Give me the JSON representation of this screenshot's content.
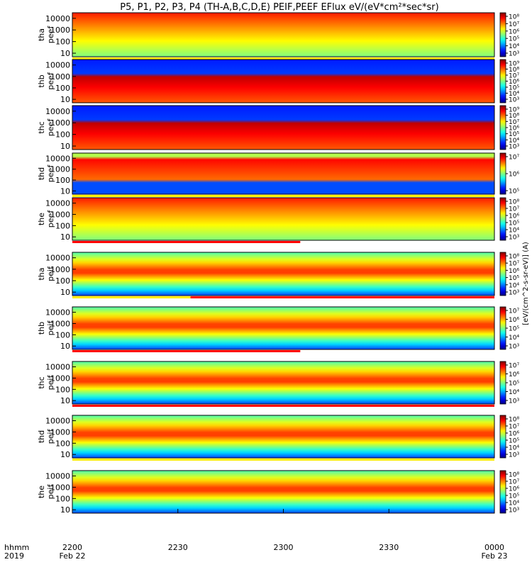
{
  "chart_data": {
    "type": "heatmap",
    "title": "P5, P1, P2, P3, P4 (TH-A,B,C,D,E) PEIF,PEEF EFlux eV/(eV*cm²*sec*sr)",
    "x": {
      "label_line1": "hhmm",
      "label_line2": "2019",
      "ticks": [
        {
          "time": "2200",
          "date": "Feb 22",
          "t": 0
        },
        {
          "time": "2230",
          "date": "",
          "t": 30
        },
        {
          "time": "2300",
          "date": "",
          "t": 60
        },
        {
          "time": "2330",
          "date": "",
          "t": 90
        },
        {
          "time": "0000",
          "date": "Feb 23",
          "t": 120
        }
      ],
      "range_minutes": [
        0,
        120
      ]
    },
    "y": {
      "scale": "log",
      "range_eV": [
        5,
        30000
      ],
      "ticks": [
        {
          "label": "10000",
          "value": 10000
        },
        {
          "label": "1000",
          "value": 1000
        },
        {
          "label": "100",
          "value": 100
        },
        {
          "label": "10",
          "value": 10
        }
      ]
    },
    "colorbar_label": "[eV/(cm^2-s-sr-eV)] (A)",
    "panels": [
      {
        "name": "tha peef",
        "line1": "tha",
        "line2": "peef",
        "band": "yellow",
        "colorbar_ticks": [
          "10⁸",
          "10⁷",
          "10⁶",
          "10⁵",
          "10⁴",
          "10³"
        ]
      },
      {
        "name": "thb peef",
        "line1": "thb",
        "line2": "peef",
        "band": "",
        "colorbar_ticks": [
          "10⁹",
          "10⁸",
          "10⁷",
          "10⁶",
          "10⁵",
          "10⁴",
          "10³"
        ]
      },
      {
        "name": "thc peef",
        "line1": "thc",
        "line2": "peef",
        "band": "",
        "colorbar_ticks": [
          "10⁹",
          "10⁸",
          "10⁷",
          "10⁶",
          "10⁵",
          "10⁴",
          "10³"
        ]
      },
      {
        "name": "thd peef",
        "line1": "thd",
        "line2": "peef",
        "band": "yellow",
        "colorbar_ticks": [
          "10⁷",
          "10⁶",
          "10⁵"
        ]
      },
      {
        "name": "the peef",
        "line1": "the",
        "line2": "peef",
        "band": "red-partial",
        "colorbar_ticks": [
          "10⁸",
          "10⁷",
          "10⁶",
          "10⁵",
          "10⁴",
          "10³"
        ]
      },
      {
        "name": "tha peif",
        "line1": "tha",
        "line2": "peif",
        "band": "yellow-red",
        "colorbar_ticks": [
          "10⁸",
          "10⁷",
          "10⁶",
          "10⁵",
          "10⁴",
          "10³"
        ]
      },
      {
        "name": "thb peif",
        "line1": "thb",
        "line2": "peif",
        "band": "red-partial",
        "colorbar_ticks": [
          "10⁷",
          "10⁶",
          "10⁵",
          "10⁴",
          "10³"
        ]
      },
      {
        "name": "thc peif",
        "line1": "thc",
        "line2": "peif",
        "band": "red",
        "colorbar_ticks": [
          "10⁷",
          "10⁶",
          "10⁵",
          "10⁴",
          "10³"
        ]
      },
      {
        "name": "thd peif",
        "line1": "thd",
        "line2": "peif",
        "band": "yellow",
        "colorbar_ticks": [
          "10⁸",
          "10⁷",
          "10⁶",
          "10⁵",
          "10⁴",
          "10³"
        ]
      },
      {
        "name": "the peif",
        "line1": "the",
        "line2": "peif",
        "band": "",
        "colorbar_ticks": [
          "10⁸",
          "10⁷",
          "10⁶",
          "10⁵",
          "10⁴",
          "10³"
        ]
      }
    ]
  }
}
